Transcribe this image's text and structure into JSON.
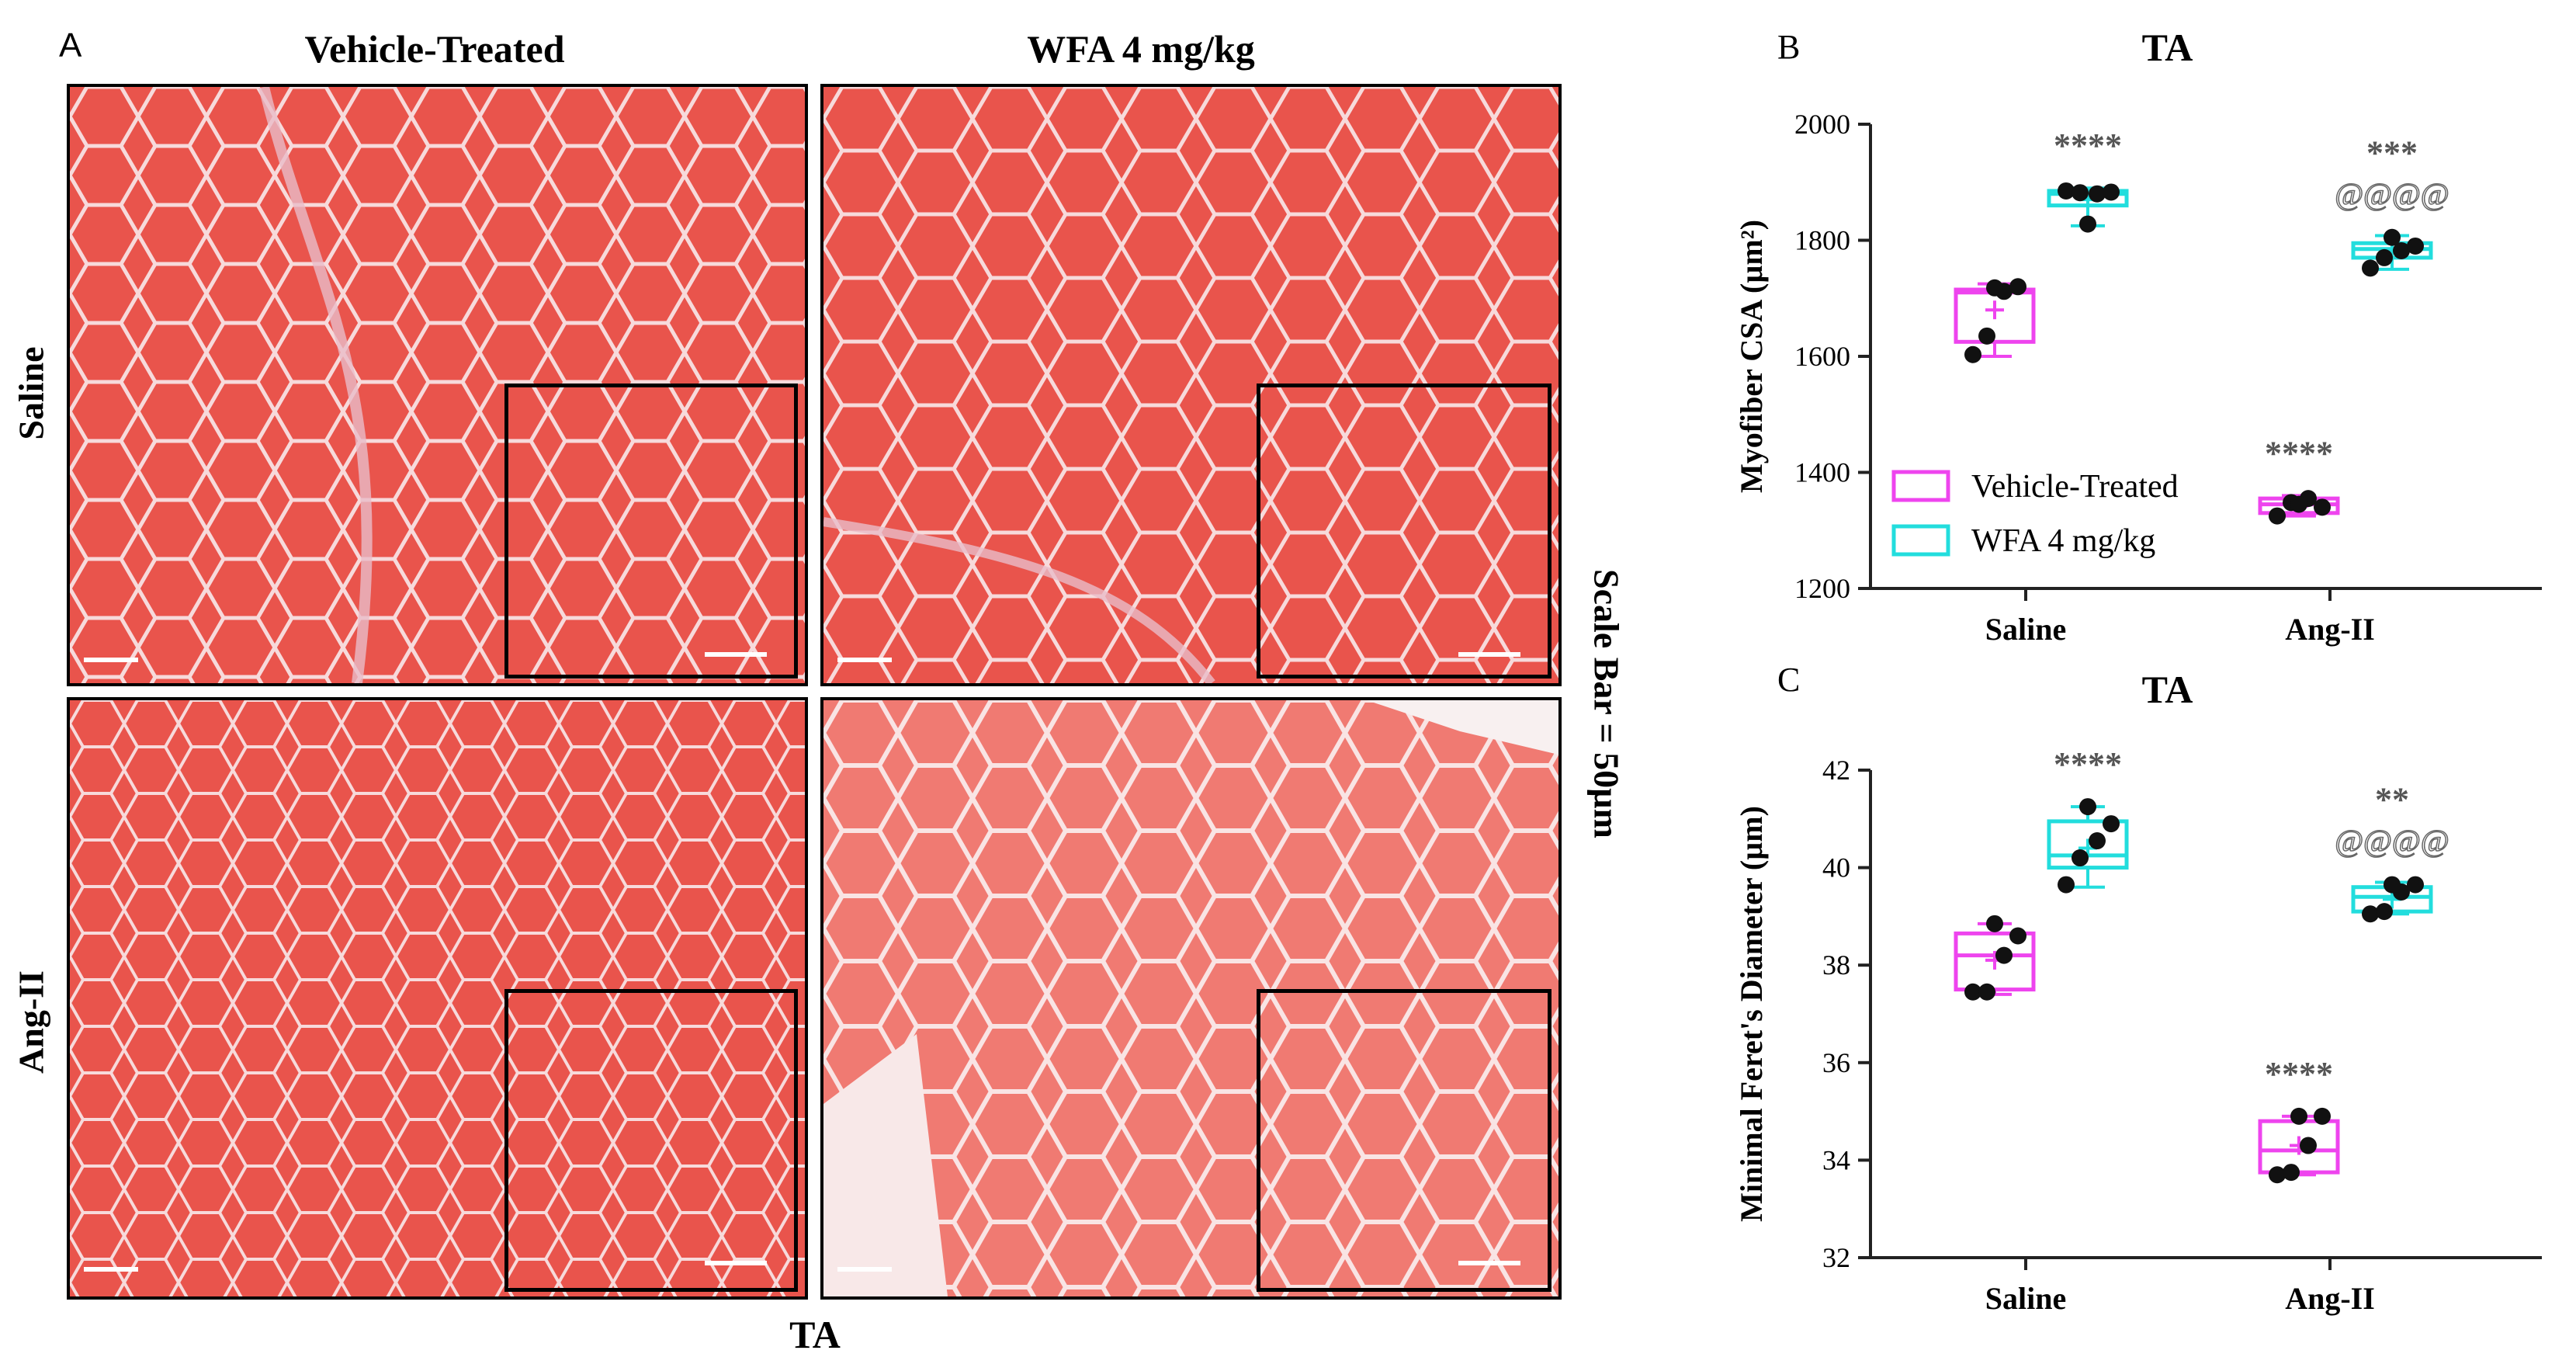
{
  "panel_a": {
    "letter": "A",
    "columns": [
      "Vehicle-Treated",
      "WFA 4 mg/kg"
    ],
    "rows": [
      "Saline",
      "Ang-II"
    ],
    "scale_bar_label": "Scale Bar = 50µm",
    "footer_label": "TA",
    "colors": {
      "tissue": "#e8524a",
      "membrane": "#f6d6d8",
      "pale_tissue": "#f2a7a3"
    }
  },
  "chart_data": [
    {
      "panel": "B",
      "type": "box",
      "title": "TA",
      "xlabel": "",
      "ylabel": "Myofiber CSA (µm²)",
      "categories": [
        "Saline",
        "Ang-II"
      ],
      "ylim": [
        1200,
        2000
      ],
      "yticks": [
        1200,
        1400,
        1600,
        1800,
        2000
      ],
      "legend": {
        "placement": "bottom-left",
        "entries": [
          "Vehicle-Treated",
          "WFA 4 mg/kg"
        ]
      },
      "series": [
        {
          "name": "Vehicle-Treated",
          "color": "#ee44ee",
          "boxes": [
            {
              "category": "Saline",
              "min": 1600,
              "q1": 1625,
              "median": 1710,
              "q3": 1715,
              "max": 1725,
              "mean": 1680,
              "points": [
                1603,
                1635,
                1712,
                1720,
                1718
              ],
              "annotation": []
            },
            {
              "category": "Ang-II",
              "min": 1325,
              "q1": 1330,
              "median": 1345,
              "q3": 1355,
              "max": 1360,
              "mean": 1342,
              "points": [
                1325,
                1348,
                1355,
                1340,
                1345
              ],
              "annotation": [
                "****"
              ]
            }
          ]
        },
        {
          "name": "WFA 4 mg/kg",
          "color": "#22dddd",
          "boxes": [
            {
              "category": "Saline",
              "min": 1825,
              "q1": 1860,
              "median": 1880,
              "q3": 1885,
              "max": 1890,
              "mean": 1870,
              "points": [
                1885,
                1882,
                1880,
                1883,
                1828
              ],
              "annotation": [
                "****"
              ]
            },
            {
              "category": "Ang-II",
              "min": 1750,
              "q1": 1770,
              "median": 1785,
              "q3": 1795,
              "max": 1808,
              "mean": 1783,
              "points": [
                1752,
                1770,
                1782,
                1790,
                1805
              ],
              "annotation": [
                "***",
                "@@@@"
              ]
            }
          ]
        }
      ]
    },
    {
      "panel": "C",
      "type": "box",
      "title": "TA",
      "xlabel": "",
      "ylabel": "Minimal Feret's Diameter (µm)",
      "categories": [
        "Saline",
        "Ang-II"
      ],
      "ylim": [
        32,
        42
      ],
      "yticks": [
        32,
        34,
        36,
        38,
        40,
        42
      ],
      "series": [
        {
          "name": "Vehicle-Treated",
          "color": "#ee44ee",
          "boxes": [
            {
              "category": "Saline",
              "min": 37.4,
              "q1": 37.5,
              "median": 38.2,
              "q3": 38.65,
              "max": 38.85,
              "mean": 38.1,
              "points": [
                37.45,
                37.45,
                38.2,
                38.6,
                38.85
              ],
              "annotation": []
            },
            {
              "category": "Ang-II",
              "min": 33.7,
              "q1": 33.75,
              "median": 34.2,
              "q3": 34.8,
              "max": 34.9,
              "mean": 34.3,
              "points": [
                33.7,
                33.75,
                34.3,
                34.9,
                34.9
              ],
              "annotation": [
                "****"
              ]
            }
          ]
        },
        {
          "name": "WFA 4 mg/kg",
          "color": "#22dddd",
          "boxes": [
            {
              "category": "Saline",
              "min": 39.6,
              "q1": 40.0,
              "median": 40.25,
              "q3": 40.95,
              "max": 41.25,
              "mean": 40.4,
              "points": [
                39.65,
                40.2,
                40.55,
                40.9,
                41.25
              ],
              "annotation": [
                "****"
              ]
            },
            {
              "category": "Ang-II",
              "min": 39.05,
              "q1": 39.1,
              "median": 39.4,
              "q3": 39.6,
              "max": 39.7,
              "mean": 39.35,
              "points": [
                39.05,
                39.1,
                39.5,
                39.65,
                39.65
              ],
              "annotation": [
                "**",
                "@@@@"
              ]
            }
          ]
        }
      ]
    }
  ]
}
